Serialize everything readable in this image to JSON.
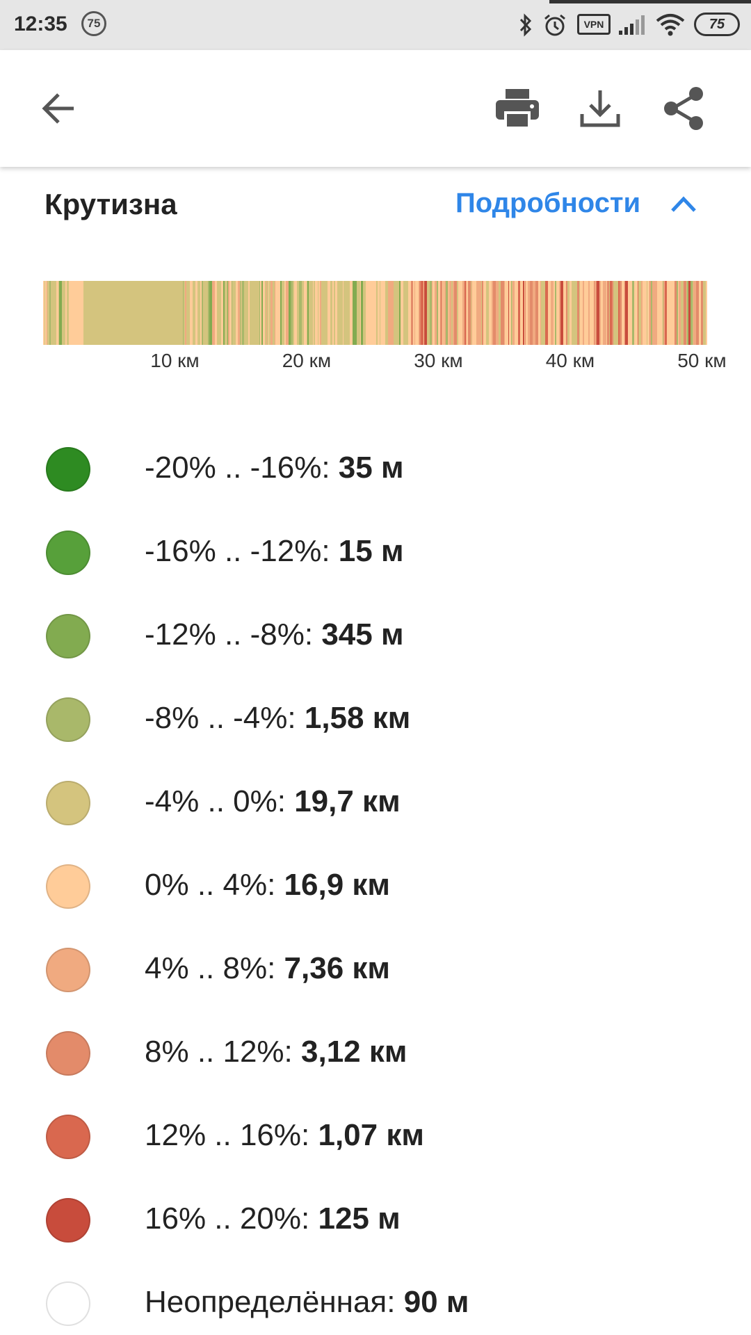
{
  "status_bar": {
    "time": "12:35",
    "notification_count": "75",
    "vpn_label": "VPN",
    "battery": "75",
    "icons": [
      "bluetooth-icon",
      "alarm-icon",
      "vpn-icon",
      "signal-icon",
      "wifi-icon",
      "battery-icon"
    ]
  },
  "app_bar": {
    "icons": [
      "back-arrow-icon",
      "print-icon",
      "download-icon",
      "share-icon"
    ]
  },
  "section": {
    "title": "Крутизна",
    "details_label": "Подробности"
  },
  "chart_data": {
    "type": "heatmap",
    "title": "",
    "x_unit": "км",
    "x_ticks": [
      "10 км",
      "20 км",
      "30 км",
      "40 км",
      "50 км"
    ],
    "x_tick_values": [
      10,
      20,
      30,
      40,
      50
    ],
    "x_range": [
      0,
      50.4
    ]
  },
  "legend": [
    {
      "range": "-20% .. -16%: ",
      "value": "35 м",
      "color": "#2e8b22"
    },
    {
      "range": "-16% .. -12%: ",
      "value": "15 м",
      "color": "#57a03a"
    },
    {
      "range": "-12% .. -8%: ",
      "value": "345 м",
      "color": "#82ab50"
    },
    {
      "range": "-8% .. -4%: ",
      "value": "1,58 км",
      "color": "#a9b86a"
    },
    {
      "range": "-4% .. 0%: ",
      "value": "19,7 км",
      "color": "#d4c47e"
    },
    {
      "range": "0% .. 4%: ",
      "value": "16,9 км",
      "color": "#ffcc99"
    },
    {
      "range": "4% .. 8%: ",
      "value": "7,36 км",
      "color": "#f0aa80"
    },
    {
      "range": "8% .. 12%: ",
      "value": "3,12 км",
      "color": "#e38b6a"
    },
    {
      "range": "12% .. 16%: ",
      "value": "1,07 км",
      "color": "#d9684f"
    },
    {
      "range": "16% .. 20%: ",
      "value": "125 м",
      "color": "#c84c3c"
    },
    {
      "range": "Неопределённая: ",
      "value": "90 м",
      "color": "#ffffff"
    }
  ]
}
